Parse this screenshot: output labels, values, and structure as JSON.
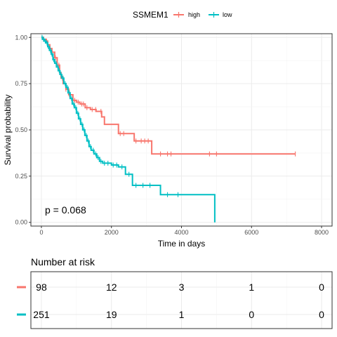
{
  "chart_data": [
    {
      "type": "line",
      "subtype": "kaplan-meier",
      "title": "",
      "xlabel": "Time in days",
      "ylabel": "Survival probability",
      "xlim": [
        -300,
        8300
      ],
      "ylim": [
        -0.02,
        1.02
      ],
      "x_ticks": [
        0,
        2000,
        4000,
        6000,
        8000
      ],
      "y_ticks": [
        0.0,
        0.25,
        0.5,
        0.75,
        1.0
      ],
      "y_tick_labels": [
        "0.00",
        "0.25",
        "0.50",
        "0.75",
        "1.00"
      ],
      "grid": true,
      "legend": {
        "title": "SSMEM1",
        "position": "top",
        "entries": [
          "high",
          "low"
        ]
      },
      "annotation": "p = 0.068",
      "series": [
        {
          "name": "high",
          "color": "#F8766D",
          "x": [
            0,
            60,
            120,
            180,
            240,
            300,
            380,
            450,
            520,
            560,
            620,
            700,
            780,
            900,
            1000,
            1100,
            1250,
            1400,
            1560,
            1720,
            1800,
            2200,
            2650,
            3150,
            7250
          ],
          "y": [
            1.0,
            0.99,
            0.98,
            0.96,
            0.94,
            0.92,
            0.89,
            0.85,
            0.81,
            0.78,
            0.75,
            0.72,
            0.69,
            0.66,
            0.65,
            0.64,
            0.62,
            0.61,
            0.6,
            0.57,
            0.53,
            0.48,
            0.44,
            0.37,
            0.37
          ],
          "censor_x": [
            60,
            150,
            250,
            400,
            500,
            600,
            700,
            800,
            950,
            1050,
            1150,
            1200,
            1300,
            1450,
            1550,
            1700,
            2250,
            2350,
            2700,
            2850,
            2950,
            3050,
            3400,
            3600,
            3700,
            4800,
            5000,
            7250
          ]
        },
        {
          "name": "low",
          "color": "#00BFC4",
          "x": [
            0,
            40,
            80,
            130,
            180,
            230,
            280,
            330,
            380,
            430,
            480,
            530,
            580,
            640,
            700,
            760,
            820,
            880,
            940,
            1000,
            1060,
            1120,
            1180,
            1240,
            1300,
            1360,
            1420,
            1500,
            1580,
            1660,
            1750,
            1850,
            2000,
            2200,
            2400,
            2600,
            3400,
            4950
          ],
          "y": [
            1.0,
            0.99,
            0.98,
            0.97,
            0.95,
            0.93,
            0.91,
            0.88,
            0.86,
            0.84,
            0.82,
            0.8,
            0.78,
            0.75,
            0.73,
            0.7,
            0.67,
            0.64,
            0.62,
            0.59,
            0.56,
            0.53,
            0.5,
            0.47,
            0.44,
            0.41,
            0.39,
            0.37,
            0.35,
            0.33,
            0.32,
            0.32,
            0.31,
            0.3,
            0.26,
            0.2,
            0.15,
            0.0
          ],
          "censor_x": [
            20,
            60,
            110,
            160,
            200,
            260,
            300,
            350,
            420,
            470,
            510,
            560,
            620,
            680,
            740,
            800,
            860,
            920,
            980,
            1040,
            1100,
            1160,
            1220,
            1280,
            1340,
            1400,
            1480,
            1550,
            1620,
            1700,
            1800,
            1900,
            2050,
            2150,
            2300,
            2500,
            2700,
            2900,
            3100,
            3600,
            3900
          ]
        }
      ]
    },
    {
      "type": "table",
      "title": "Number at risk",
      "x_ticks": [
        0,
        2000,
        4000,
        6000,
        8000
      ],
      "rows": [
        {
          "group": "high",
          "color": "#F8766D",
          "values": [
            "98",
            "12",
            "3",
            "1",
            "0"
          ]
        },
        {
          "group": "low",
          "color": "#00BFC4",
          "values": [
            "251",
            "19",
            "1",
            "0",
            "0"
          ]
        }
      ]
    }
  ]
}
